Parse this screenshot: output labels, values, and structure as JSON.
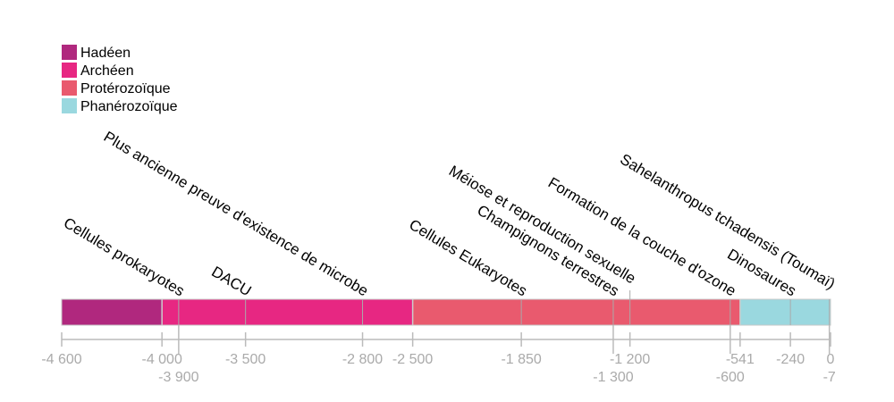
{
  "chart_data": {
    "type": "timeline",
    "xlim": [
      -4600,
      0
    ],
    "eras": [
      {
        "name": "Hadéen",
        "start": -4600,
        "end": -4000,
        "color": "#b0287e"
      },
      {
        "name": "Archéen",
        "start": -4000,
        "end": -2500,
        "color": "#e72782"
      },
      {
        "name": "Protérozoïque",
        "start": -2500,
        "end": -541,
        "color": "#e95a6e"
      },
      {
        "name": "Phanérozoïque",
        "start": -541,
        "end": 0,
        "color": "#9ad8df"
      }
    ],
    "events": [
      {
        "label": "Cellules prokaryotes",
        "x": -3900
      },
      {
        "label": "DACU",
        "x": -3500
      },
      {
        "label": "Plus ancienne preuve d'existence de microbe",
        "x": -2800
      },
      {
        "label": "Cellules Eukaryotes",
        "x": -1850
      },
      {
        "label": "Champignons terrestres",
        "x": -1300
      },
      {
        "label": "Méiose et reproduction sexuelle",
        "x": -1200
      },
      {
        "label": "Formation de la couche d'ozone",
        "x": -600
      },
      {
        "label": "Dinosaures",
        "x": -240
      },
      {
        "label": "Sahelanthropus tchadensis (Toumaï)",
        "x": -7
      }
    ],
    "ticks": [
      {
        "value": -4600,
        "label": "-4 600",
        "row": 1
      },
      {
        "value": -4000,
        "label": "-4 000",
        "row": 1
      },
      {
        "value": -3900,
        "label": "-3 900",
        "row": 2
      },
      {
        "value": -3500,
        "label": "-3 500",
        "row": 1
      },
      {
        "value": -2800,
        "label": "-2 800",
        "row": 1
      },
      {
        "value": -2500,
        "label": "-2 500",
        "row": 1
      },
      {
        "value": -1850,
        "label": "-1 850",
        "row": 1
      },
      {
        "value": -1300,
        "label": "-1 300",
        "row": 2
      },
      {
        "value": -1200,
        "label": "-1 200",
        "row": 1
      },
      {
        "value": -600,
        "label": "-600",
        "row": 2
      },
      {
        "value": -541,
        "label": "-541",
        "row": 1
      },
      {
        "value": -240,
        "label": "-240",
        "row": 1
      },
      {
        "value": -7,
        "label": "-7",
        "row": 2
      },
      {
        "value": 0,
        "label": "0",
        "row": 1
      }
    ],
    "legend_position": "top-left"
  }
}
